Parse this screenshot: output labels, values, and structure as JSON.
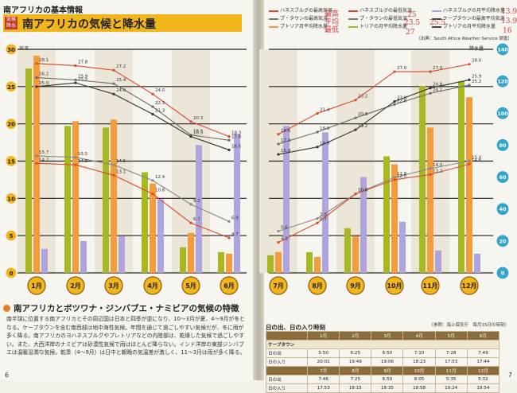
{
  "header": {
    "section_title": "南アフリカの基本情報",
    "badge": "気候 降水",
    "main_title": "南アフリカの気候と降水量"
  },
  "legend": [
    {
      "label": "ハネスブルグの最高気温",
      "color": "#d94a2a"
    },
    {
      "label": "プ・タウンの最高気温",
      "color": "#7a7a7a"
    },
    {
      "label": "プトリア月平均降水量",
      "color": "#f39c3c"
    },
    {
      "label": "ハネスブルグの最低気温",
      "color": "#d94a2a"
    },
    {
      "label": "プ・タウンの最低気温",
      "color": "#7a7a7a"
    },
    {
      "label": "トリアの月平均降水量",
      "color": "#a8b820"
    },
    {
      "label": "ハネスブルグの月平均降水量",
      "color": "#b0a4dc"
    },
    {
      "label": "ケープタウンの最高平均気温",
      "color": "#444444"
    },
    {
      "label": "プトリアの月平均降水量",
      "color": "#444444"
    }
  ],
  "handwritten": [
    "最高",
    "平均",
    "最低",
    "25",
    "23.5",
    "25.5",
    "27",
    "13.9",
    "13.9",
    "16"
  ],
  "source": "（出典：South Africa Weather Service 調査）",
  "axis_units": {
    "left": "気温",
    "right": "降水量"
  },
  "chart_data": {
    "type": "bar",
    "categories": [
      "1月",
      "2月",
      "3月",
      "4月",
      "5月",
      "6月",
      "7月",
      "8月",
      "9月",
      "10月",
      "11月",
      "12月"
    ],
    "y_left": {
      "label": "気温",
      "range": [
        0,
        30
      ],
      "ticks": [
        0,
        5,
        10,
        15,
        20,
        25,
        30
      ],
      "unit": "℃"
    },
    "y_right": {
      "label": "降水量",
      "range": [
        0,
        140
      ],
      "ticks": [
        0,
        20,
        40,
        60,
        80,
        100,
        120,
        140
      ]
    },
    "bar_series": [
      {
        "color": "#a8b820",
        "values": [
          128,
          92,
          91,
          63,
          16,
          13,
          11,
          13,
          28,
          73,
          117,
          120
        ]
      },
      {
        "color": "#f39c3c",
        "values": [
          136,
          95,
          96,
          56,
          25,
          12,
          13,
          10,
          23,
          68,
          91,
          110
        ]
      },
      {
        "color": "#b0a4dc",
        "values": [
          15,
          20,
          23,
          46,
          80,
          87,
          92,
          88,
          60,
          32,
          14,
          12
        ]
      }
    ],
    "line_series": [
      {
        "color": "#d94a2a",
        "values": [
          28.1,
          27.8,
          27.2,
          24.0,
          20.3,
          18.3,
          18.6,
          21.4,
          23.2,
          27.0,
          27.0,
          28.0
        ],
        "labels": [
          "28.1",
          "27.8",
          "27.2",
          "24.0",
          "20.3",
          "18.3",
          "18.6",
          "21.4",
          "23.2",
          "27.0",
          "27.0",
          "28.0"
        ]
      },
      {
        "color": "#6b6b6b",
        "values": [
          26.2,
          25.9,
          25.4,
          22.3,
          18.5,
          17.8,
          17.3,
          18.9,
          20.8,
          22.6,
          24.1,
          25.2
        ],
        "labels": [
          "26.2",
          "25.9",
          "25.4",
          "22.3",
          "18.5",
          "17.8",
          "17.3",
          "18.9",
          "20.8",
          "22.6",
          "24.1",
          "25.2"
        ]
      },
      {
        "color": "#333333",
        "values": [
          25.0,
          25.5,
          24.0,
          21.3,
          18.3,
          16.5,
          15.9,
          16.9,
          19.2,
          23.0,
          24.8,
          25.9
        ],
        "labels": [
          "25.0",
          "25.5",
          "24.0",
          "21.3",
          "18.3",
          "16.5",
          "15.9",
          "16.9",
          "19.2",
          "23.0",
          "24.8",
          "25.9"
        ]
      },
      {
        "color": "#888888",
        "values": [
          15.7,
          15.5,
          14.5,
          12.4,
          9.2,
          6.9,
          5.6,
          7.3,
          10.6,
          12.8,
          14.0,
          15.0
        ],
        "labels": [
          "15.7",
          "15.5",
          "14.5",
          "12.4",
          "9.2",
          "6.9",
          "5.6",
          "7.3",
          "10.6",
          "12.8",
          "14.0",
          "15.0"
        ]
      },
      {
        "color": "#d94a2a",
        "values": [
          14.7,
          14.5,
          13.1,
          10.6,
          6.7,
          4.7,
          4.1,
          6.7,
          10.6,
          12.5,
          13.2,
          14.6
        ],
        "labels": [
          "14.7",
          "14.5",
          "13.1",
          "10.6",
          "6.7",
          "4.7",
          "4.1",
          "6.7",
          "10.6",
          "12.5",
          "13.2",
          "14.6"
        ]
      }
    ]
  },
  "section": {
    "title": "南アフリカとボツワナ・ジンバブエ・ナミビアの気候の特徴",
    "body": "南半球に位置する南アフリカとその周辺国は日本と四季が逆になり、10〜3月が夏、4〜9月が冬となる。ケープタウンを含む南西部は地中海性気候。年間を通じて過ごしやすい気候だが、冬に雨が多く降る。南アフリカのヨハネスブルグやプレトリアなどの内陸部は、乾燥した気候で過ごしやすい。また、大西洋岸のナミビアは砂漠性気候で雨はほとんど降らない。インド洋岸の東部ジンバブエは温暖湿潤な気候。乾季（4〜9月）は日中と朝晩の気温差が激しく、11〜3月は雨が多く降る。"
  },
  "page_numbers": {
    "left": "6",
    "right": "7"
  },
  "sunrise": {
    "title": "日の出、日の入り時刻",
    "source": "（参照：海上保安庁　毎月15日の時刻）",
    "months_a": [
      "1月",
      "2月",
      "3月",
      "4月",
      "5月",
      "6月"
    ],
    "months_b": [
      "7月",
      "8月",
      "9月",
      "10月",
      "11月",
      "12月"
    ],
    "city": "ケープタウン",
    "rise_label": "日の出",
    "set_label": "日の入り",
    "rise_a": [
      "5:50",
      "6:25",
      "6:50",
      "7:10",
      "7:28",
      "7:49"
    ],
    "set_a": [
      "20:01",
      "19:49",
      "19:06",
      "18:23",
      "17:53",
      "17:44"
    ],
    "rise_b": [
      "7:46",
      "7:25",
      "6:50",
      "6:05",
      "5:35",
      "5:32"
    ],
    "set_b": [
      "17:53",
      "18:15",
      "18:35",
      "18:58",
      "19:24",
      "19:54"
    ]
  }
}
